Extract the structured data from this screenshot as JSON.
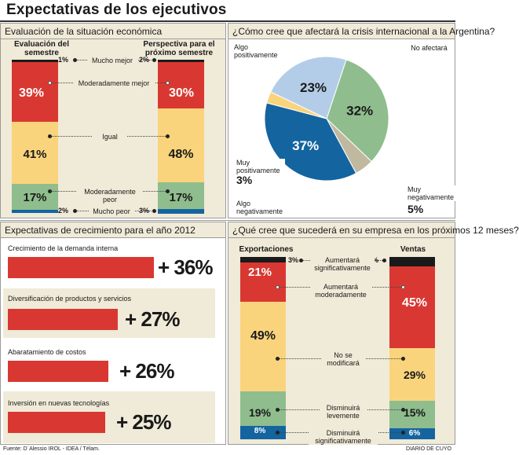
{
  "title": "Expectativas de los ejecutivos",
  "colors": {
    "red": "#d93832",
    "yellow": "#fad47c",
    "green": "#8fbd8d",
    "blue": "#1464a0",
    "light_blue": "#b3cde8",
    "tan": "#c1b8a0",
    "black": "#1a1a1a",
    "panel": "#f0ead8"
  },
  "panel1": {
    "heading": "Evaluación de la situación económica",
    "left_title": "Evaluación del semestre",
    "right_title": "Perspectiva para el próximo semestre",
    "categories": {
      "mucho_mejor": "Mucho mejor",
      "moderadamente_mejor": "Moderadamente mejor",
      "igual": "Igual",
      "moderadamente_peor": "Moderadamente peor",
      "mucho_peor": "Mucho peor"
    },
    "left_values": {
      "mucho_mejor": "1%",
      "moderadamente_mejor": "39%",
      "igual": "41%",
      "moderadamente_peor": "17%",
      "mucho_peor": "2%"
    },
    "right_values": {
      "mucho_mejor": "2%",
      "moderadamente_mejor": "30%",
      "igual": "48%",
      "moderadamente_peor": "17%",
      "mucho_peor": "3%"
    }
  },
  "panel2": {
    "heading": "¿Cómo cree que afectará la crisis internacional a la Argentina?",
    "labels": {
      "algo_positivamente": "Algo positivamente",
      "no_afectara": "No afectará",
      "muy_positivamente": "Muy positivamente",
      "algo_negativamente": "Algo negativamente",
      "muy_negativamente": "Muy negativamente"
    },
    "values": {
      "algo_positivamente": "23%",
      "no_afectara": "32%",
      "muy_positivamente": "3%",
      "algo_negativamente": "37%",
      "muy_negativamente": "5%"
    }
  },
  "panel3": {
    "heading": "Expectativas de crecimiento para el año 2012",
    "items": [
      {
        "label": "Crecimiento de la demanda interna",
        "value": "+ 36%"
      },
      {
        "label": "Diversificación de productos y servicios",
        "value": "+ 27%"
      },
      {
        "label": "Abaratamiento de costos",
        "value": "+ 26%"
      },
      {
        "label": "Inversión en nuevas tecnologías",
        "value": "+ 25%"
      }
    ]
  },
  "panel4": {
    "heading": "¿Qué cree que sucederá en su empresa en los próximos 12 meses?",
    "left_title": "Exportaciones",
    "right_title": "Ventas",
    "categories": {
      "aumentara_sig": "Aumentará significativamente",
      "aumentara_mod": "Aumentará moderadamente",
      "no_modificara": "No se modificará",
      "disminuira_lev": "Disminuirá levemente",
      "disminuira_sig": "Disminuirá significativamente"
    },
    "left_values": {
      "aumentara_sig": "3%",
      "aumentara_mod": "21%",
      "no_modificara": "49%",
      "disminuira_lev": "19%",
      "disminuira_sig": "8%"
    },
    "right_values": {
      "aumentara_sig": "5%",
      "aumentara_mod": "45%",
      "no_modificara": "29%",
      "disminuira_lev": "15%",
      "disminuira_sig": "6%"
    }
  },
  "footer": {
    "source": "Fuente: D´Alessio IROL - IDEA / Télam.",
    "credit": "DIARIO DE CUYO"
  },
  "chart_data": [
    {
      "type": "bar",
      "title": "Evaluación de la situación económica",
      "categories": [
        "Mucho mejor",
        "Moderadamente mejor",
        "Igual",
        "Moderadamente peor",
        "Mucho peor"
      ],
      "series": [
        {
          "name": "Evaluación del semestre",
          "values": [
            1,
            39,
            41,
            17,
            2
          ]
        },
        {
          "name": "Perspectiva para el próximo semestre",
          "values": [
            2,
            30,
            48,
            17,
            3
          ]
        }
      ]
    },
    {
      "type": "pie",
      "title": "¿Cómo cree que afectará la crisis internacional a la Argentina?",
      "categories": [
        "No afectará",
        "Muy negativamente",
        "Algo negativamente",
        "Muy positivamente",
        "Algo positivamente"
      ],
      "values": [
        32,
        5,
        37,
        3,
        23
      ]
    },
    {
      "type": "bar",
      "title": "Expectativas de crecimiento para el año 2012",
      "categories": [
        "Crecimiento de la demanda interna",
        "Diversificación de productos y servicios",
        "Abaratamiento de costos",
        "Inversión en nuevas tecnologías"
      ],
      "values": [
        36,
        27,
        26,
        25
      ]
    },
    {
      "type": "bar",
      "title": "¿Qué cree que sucederá en su empresa en los próximos 12 meses?",
      "categories": [
        "Aumentará significativamente",
        "Aumentará moderadamente",
        "No se modificará",
        "Disminuirá levemente",
        "Disminuirá significativamente"
      ],
      "series": [
        {
          "name": "Exportaciones",
          "values": [
            3,
            21,
            49,
            19,
            8
          ]
        },
        {
          "name": "Ventas",
          "values": [
            5,
            45,
            29,
            15,
            6
          ]
        }
      ]
    }
  ]
}
